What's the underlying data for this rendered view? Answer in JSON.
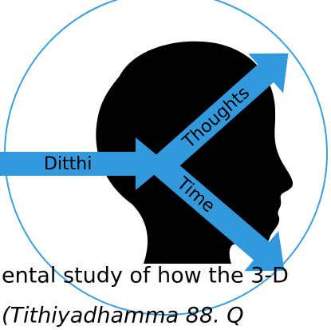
{
  "labels": {
    "left_arrow": "Ditthi",
    "up_arrow": "Thoughts",
    "down_arrow": "Time"
  },
  "caption": {
    "line1": "ental study of how the 3-D",
    "line2": "(Tithiyadhamma 88. Q"
  }
}
